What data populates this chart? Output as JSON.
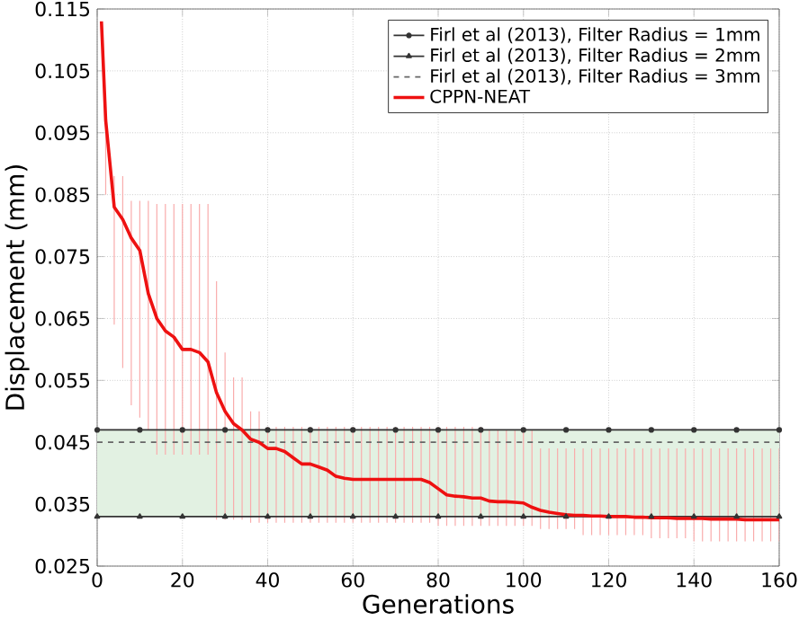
{
  "chart_data": {
    "type": "line",
    "xlabel": "Generations",
    "ylabel": "Displacement (mm)",
    "xlim": [
      0,
      160
    ],
    "ylim": [
      0.025,
      0.115
    ],
    "xticks": [
      0,
      20,
      40,
      60,
      80,
      100,
      120,
      140,
      160
    ],
    "yticks": [
      0.025,
      0.035,
      0.045,
      0.055,
      0.065,
      0.075,
      0.085,
      0.095,
      0.105,
      0.115
    ],
    "grid": true,
    "legend": "top right",
    "bands": [
      {
        "axis": "y",
        "from": 0.033,
        "to": 0.047,
        "color": "#e2f1e2"
      }
    ],
    "series": [
      {
        "name": "Firl et al (2013), Filter Radius = 1mm",
        "color": "#333333",
        "marker": "circle",
        "line_style": "solid",
        "x": [
          0,
          10,
          20,
          30,
          40,
          50,
          60,
          70,
          80,
          90,
          100,
          110,
          120,
          130,
          140,
          150,
          160
        ],
        "values": [
          0.047,
          0.047,
          0.047,
          0.047,
          0.047,
          0.047,
          0.047,
          0.047,
          0.047,
          0.047,
          0.047,
          0.047,
          0.047,
          0.047,
          0.047,
          0.047,
          0.047
        ]
      },
      {
        "name": "Firl et al (2013), Filter Radius = 2mm",
        "color": "#333333",
        "marker": "triangle",
        "line_style": "solid",
        "x": [
          0,
          10,
          20,
          30,
          40,
          50,
          60,
          70,
          80,
          90,
          100,
          110,
          120,
          130,
          140,
          150,
          160
        ],
        "values": [
          0.033,
          0.033,
          0.033,
          0.033,
          0.033,
          0.033,
          0.033,
          0.033,
          0.033,
          0.033,
          0.033,
          0.033,
          0.033,
          0.033,
          0.033,
          0.033,
          0.033
        ]
      },
      {
        "name": "Firl et al (2013), Filter Radius = 3mm",
        "color": "#666666",
        "marker": "none",
        "line_style": "dashed",
        "x": [
          0,
          160
        ],
        "values": [
          0.045,
          0.045
        ]
      },
      {
        "name": "CPPN-NEAT",
        "color": "#ee1111",
        "marker": "none",
        "line_style": "solid",
        "x": [
          1,
          2,
          4,
          6,
          8,
          10,
          12,
          14,
          16,
          18,
          20,
          22,
          24,
          26,
          28,
          30,
          32,
          34,
          36,
          38,
          40,
          42,
          44,
          46,
          48,
          50,
          52,
          54,
          56,
          58,
          60,
          62,
          64,
          66,
          68,
          70,
          72,
          74,
          76,
          78,
          80,
          82,
          84,
          86,
          88,
          90,
          92,
          94,
          96,
          98,
          100,
          102,
          104,
          106,
          108,
          110,
          112,
          114,
          116,
          118,
          120,
          122,
          124,
          126,
          128,
          130,
          132,
          134,
          136,
          138,
          140,
          142,
          144,
          146,
          148,
          150,
          152,
          154,
          156,
          158,
          160
        ],
        "values": [
          0.113,
          0.097,
          0.083,
          0.081,
          0.078,
          0.076,
          0.069,
          0.065,
          0.063,
          0.062,
          0.06,
          0.06,
          0.0595,
          0.058,
          0.053,
          0.05,
          0.048,
          0.047,
          0.0455,
          0.045,
          0.044,
          0.044,
          0.0435,
          0.0425,
          0.0415,
          0.0415,
          0.041,
          0.0405,
          0.0395,
          0.0392,
          0.039,
          0.039,
          0.039,
          0.039,
          0.039,
          0.039,
          0.039,
          0.039,
          0.039,
          0.0385,
          0.0375,
          0.0365,
          0.0363,
          0.0362,
          0.036,
          0.036,
          0.0355,
          0.0354,
          0.0354,
          0.0353,
          0.0352,
          0.0345,
          0.034,
          0.0337,
          0.0335,
          0.0333,
          0.0332,
          0.0332,
          0.0331,
          0.0331,
          0.033,
          0.033,
          0.033,
          0.0329,
          0.0329,
          0.0328,
          0.0328,
          0.0328,
          0.0327,
          0.0327,
          0.0327,
          0.0327,
          0.0326,
          0.0326,
          0.0326,
          0.0326,
          0.0325,
          0.0325,
          0.0325,
          0.0325,
          0.0325
        ],
        "errors": [
          null,
          [
            0.085,
            0.1
          ],
          [
            0.064,
            0.088
          ],
          [
            0.057,
            0.088
          ],
          [
            0.051,
            0.084
          ],
          [
            0.049,
            0.084
          ],
          [
            0.047,
            0.084
          ],
          [
            0.043,
            0.0835
          ],
          [
            0.043,
            0.0835
          ],
          [
            0.043,
            0.0835
          ],
          [
            0.043,
            0.0835
          ],
          [
            0.043,
            0.0835
          ],
          [
            0.043,
            0.0835
          ],
          [
            0.043,
            0.0835
          ],
          [
            0.0325,
            0.071
          ],
          [
            0.0325,
            0.0595
          ],
          [
            0.0325,
            0.0555
          ],
          [
            0.0325,
            0.0555
          ],
          [
            0.032,
            0.05
          ],
          [
            0.032,
            0.05
          ],
          [
            0.032,
            0.0475
          ],
          [
            0.032,
            0.0475
          ],
          [
            0.032,
            0.0475
          ],
          [
            0.032,
            0.0475
          ],
          [
            0.032,
            0.0475
          ],
          [
            0.032,
            0.0475
          ],
          [
            0.032,
            0.0475
          ],
          [
            0.032,
            0.0475
          ],
          [
            0.032,
            0.0475
          ],
          [
            0.032,
            0.0475
          ],
          [
            0.032,
            0.0475
          ],
          [
            0.032,
            0.0475
          ],
          [
            0.032,
            0.0475
          ],
          [
            0.032,
            0.0475
          ],
          [
            0.032,
            0.0475
          ],
          [
            0.032,
            0.0475
          ],
          [
            0.032,
            0.0475
          ],
          [
            0.032,
            0.0475
          ],
          [
            0.032,
            0.0475
          ],
          [
            0.032,
            0.0475
          ],
          [
            0.0315,
            0.0475
          ],
          [
            0.0315,
            0.0475
          ],
          [
            0.0315,
            0.0475
          ],
          [
            0.0315,
            0.0475
          ],
          [
            0.0315,
            0.0475
          ],
          [
            0.0315,
            0.0475
          ],
          [
            0.0315,
            0.047
          ],
          [
            0.0315,
            0.047
          ],
          [
            0.0315,
            0.047
          ],
          [
            0.0315,
            0.047
          ],
          [
            0.0315,
            0.047
          ],
          [
            0.0315,
            0.047
          ],
          [
            0.031,
            0.044
          ],
          [
            0.031,
            0.044
          ],
          [
            0.031,
            0.044
          ],
          [
            0.031,
            0.044
          ],
          [
            0.031,
            0.044
          ],
          [
            0.03,
            0.044
          ],
          [
            0.03,
            0.044
          ],
          [
            0.03,
            0.044
          ],
          [
            0.03,
            0.044
          ],
          [
            0.03,
            0.044
          ],
          [
            0.03,
            0.044
          ],
          [
            0.03,
            0.044
          ],
          [
            0.03,
            0.044
          ],
          [
            0.0295,
            0.044
          ],
          [
            0.0295,
            0.044
          ],
          [
            0.0295,
            0.044
          ],
          [
            0.0295,
            0.044
          ],
          [
            0.0295,
            0.044
          ],
          [
            0.029,
            0.044
          ],
          [
            0.029,
            0.044
          ],
          [
            0.029,
            0.044
          ],
          [
            0.029,
            0.044
          ],
          [
            0.029,
            0.044
          ],
          [
            0.029,
            0.044
          ],
          [
            0.029,
            0.044
          ],
          [
            0.029,
            0.044
          ],
          [
            0.029,
            0.044
          ],
          [
            0.029,
            0.044
          ],
          [
            0.029,
            0.044
          ]
        ]
      }
    ]
  }
}
